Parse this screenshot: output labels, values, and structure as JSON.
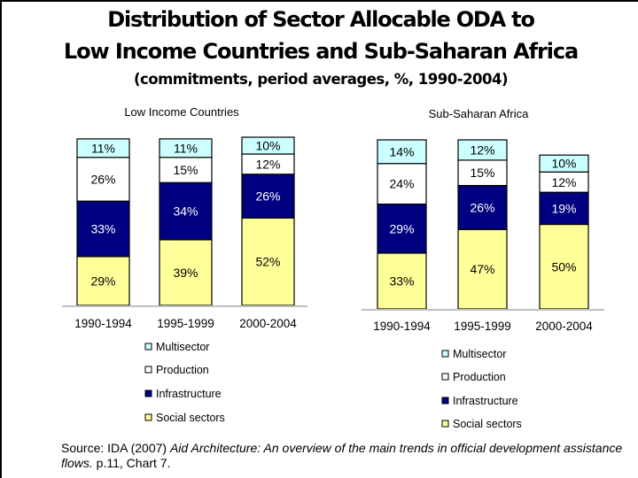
{
  "title_line1": "Distribution of Sector Allocable ODA to",
  "title_line2": "Low Income Countries and Sub-Saharan Africa",
  "subtitle": "(commitments, period averages, %, 1990-2004)",
  "source": {
    "prefix": "Source: IDA (2007) ",
    "italic": "Aid Architecture: An overview of the main trends in official development assistance flows.",
    "suffix": " p.11, Chart 7."
  },
  "colors": {
    "Multisector": "#ccffff",
    "Production": "#ffffff",
    "Infrastructure": "#000080",
    "Social sectors": "#ffff99"
  },
  "chart_data": [
    {
      "type": "bar",
      "stacked": true,
      "title": "Low Income Countries",
      "categories": [
        "1990-1994",
        "1995-1999",
        "2000-2004"
      ],
      "series": [
        {
          "name": "Social sectors",
          "values": [
            29,
            39,
            52
          ]
        },
        {
          "name": "Infrastructure",
          "values": [
            33,
            34,
            26
          ]
        },
        {
          "name": "Production",
          "values": [
            26,
            15,
            12
          ]
        },
        {
          "name": "Multisector",
          "values": [
            11,
            11,
            10
          ]
        }
      ],
      "data_labels": "percent",
      "legend": "bottom",
      "legend_order": [
        "Multisector",
        "Production",
        "Infrastructure",
        "Social sectors"
      ],
      "ylim": [
        0,
        100
      ],
      "grid": false
    },
    {
      "type": "bar",
      "stacked": true,
      "title": "Sub-Saharan  Africa",
      "categories": [
        "1990-1994",
        "1995-1999",
        "2000-2004"
      ],
      "series": [
        {
          "name": "Social sectors",
          "values": [
            33,
            47,
            50
          ]
        },
        {
          "name": "Infrastructure",
          "values": [
            29,
            26,
            19
          ]
        },
        {
          "name": "Production",
          "values": [
            24,
            15,
            12
          ]
        },
        {
          "name": "Multisector",
          "values": [
            14,
            12,
            10
          ]
        }
      ],
      "data_labels": "percent",
      "legend": "bottom",
      "legend_order": [
        "Multisector",
        "Production",
        "Infrastructure",
        "Social sectors"
      ],
      "ylim": [
        0,
        100
      ],
      "grid": false
    }
  ]
}
